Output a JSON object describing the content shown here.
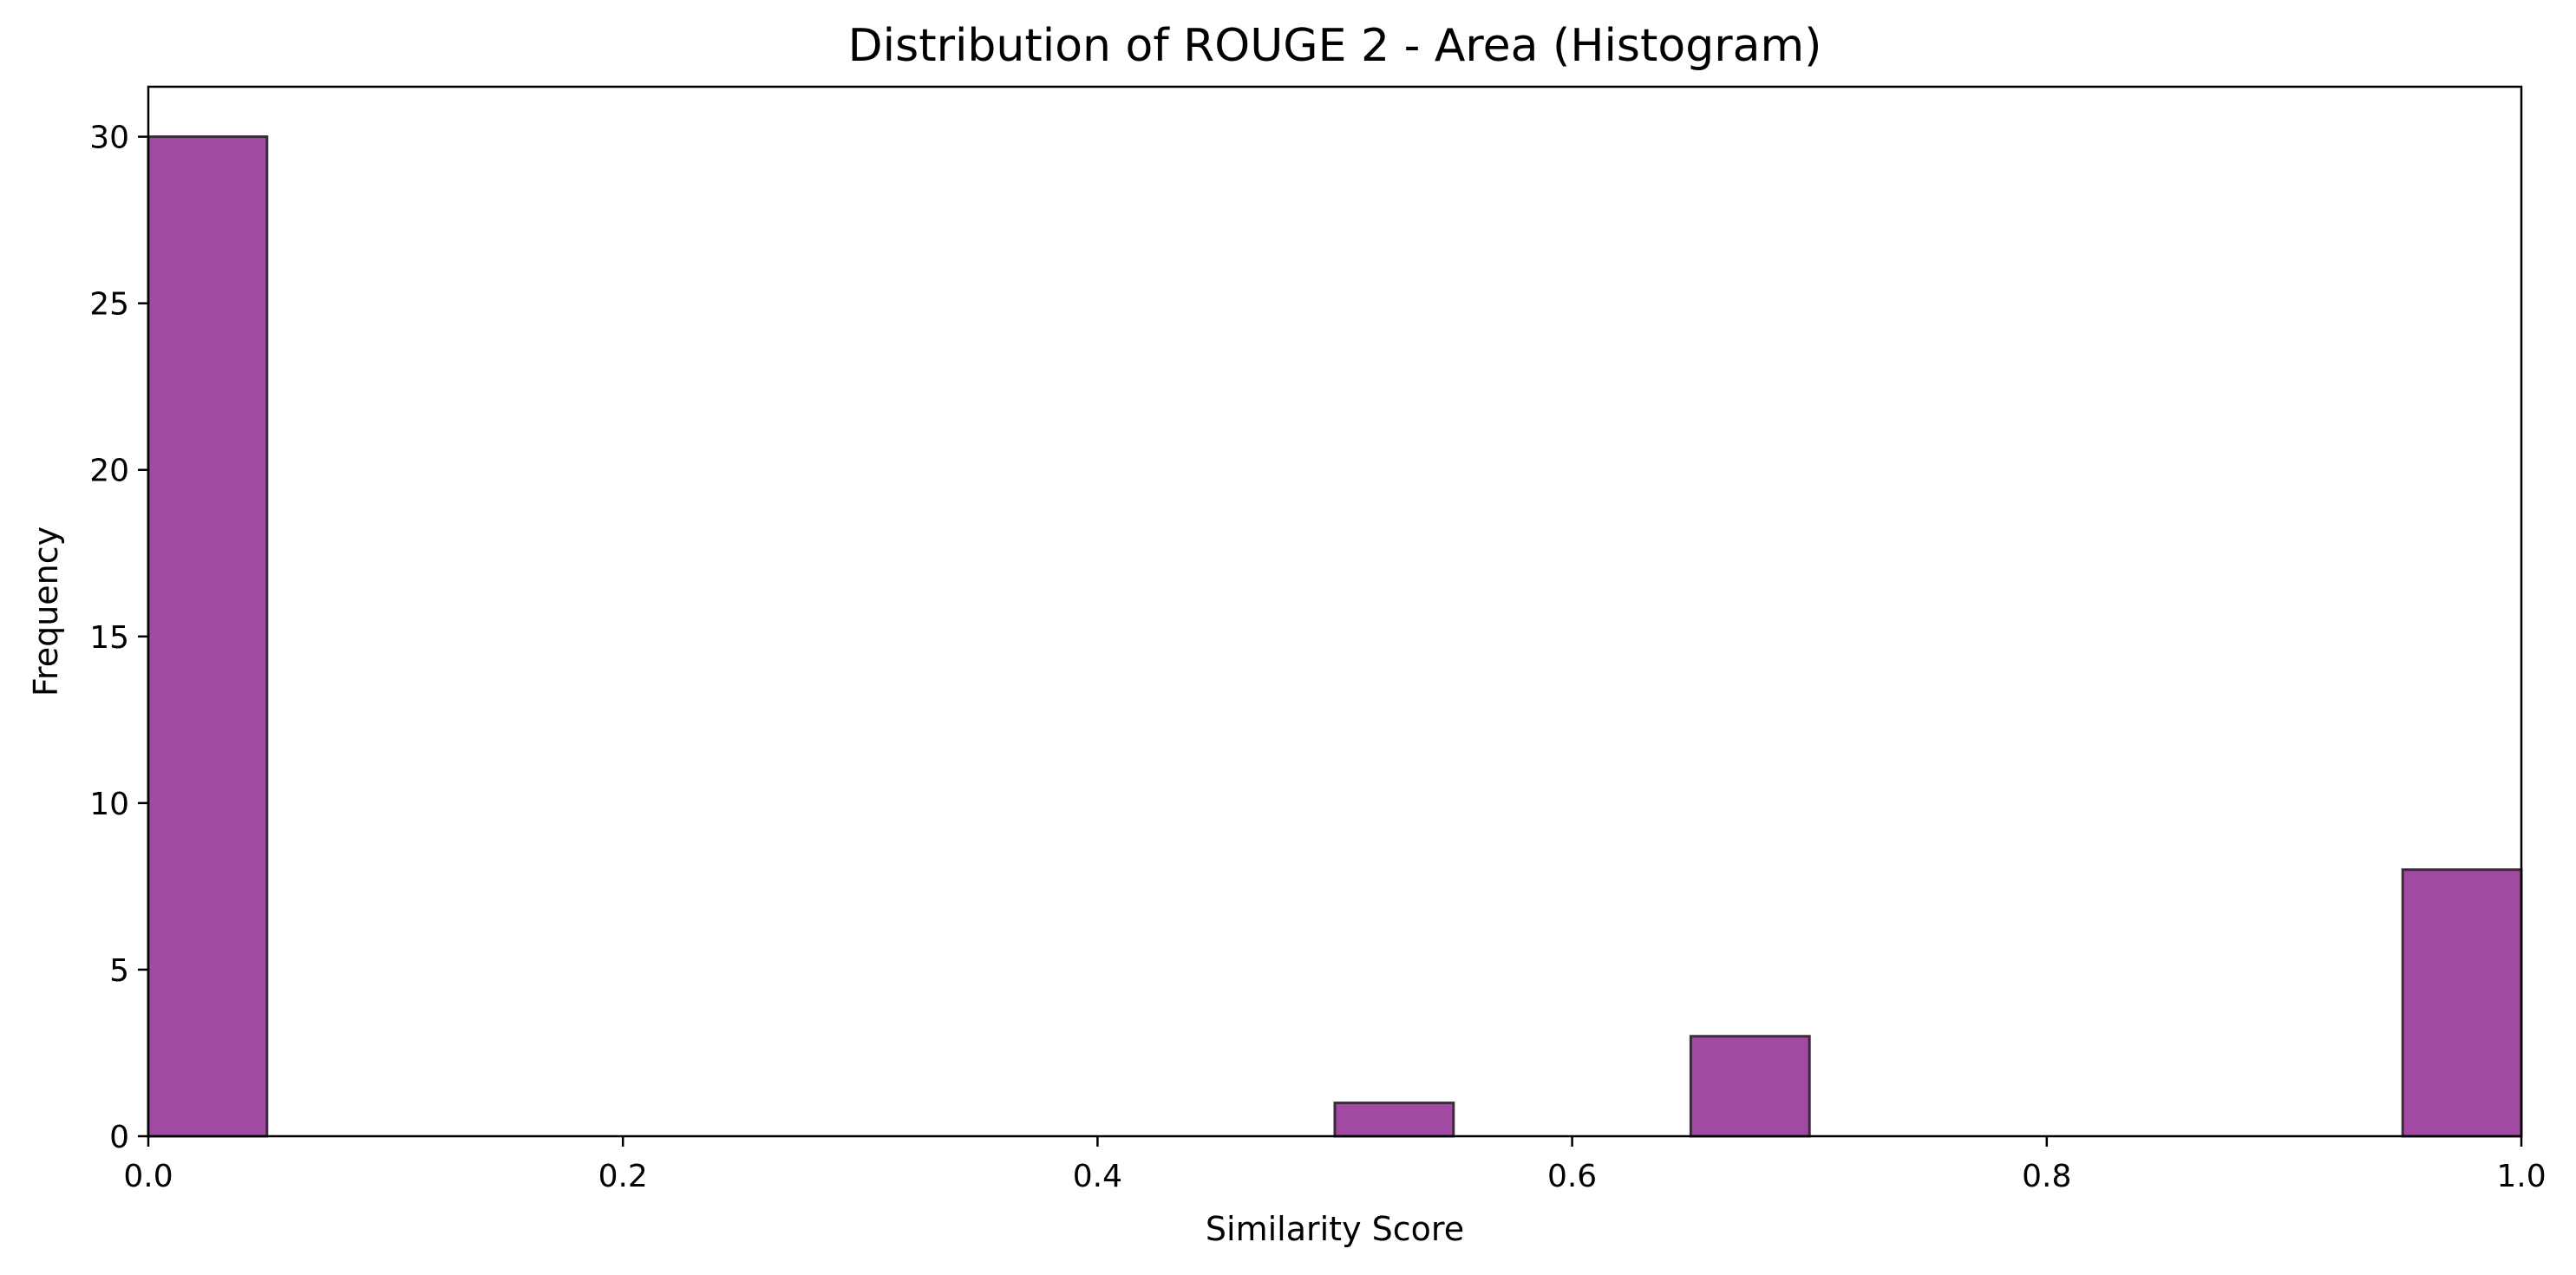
{
  "chart_data": {
    "type": "bar",
    "title": "Distribution of ROUGE 2 - Area (Histogram)",
    "xlabel": "Similarity Score",
    "ylabel": "Frequency",
    "xlim": [
      0.0,
      1.0
    ],
    "ylim": [
      0,
      31.5
    ],
    "x_ticks": [
      "0.0",
      "0.2",
      "0.4",
      "0.6",
      "0.8",
      "1.0"
    ],
    "y_ticks": [
      "0",
      "5",
      "10",
      "15",
      "20",
      "25",
      "30"
    ],
    "bin_width": 0.05,
    "bins": [
      {
        "x0": 0.0,
        "x1": 0.05,
        "count": 30
      },
      {
        "x0": 0.5,
        "x1": 0.55,
        "count": 1
      },
      {
        "x0": 0.65,
        "x1": 0.7,
        "count": 3
      },
      {
        "x0": 0.95,
        "x1": 1.0,
        "count": 8
      }
    ],
    "bar_color": "#a24aa3",
    "edge_color": "#3a2a3a",
    "grid": false
  }
}
